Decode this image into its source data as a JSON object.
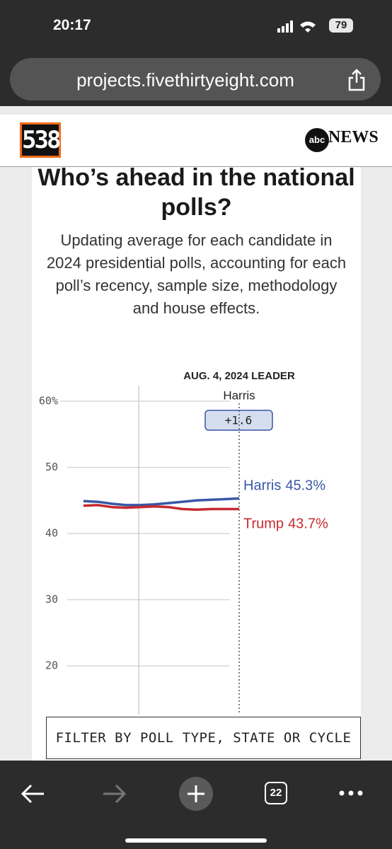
{
  "status_bar": {
    "time": "20:17",
    "battery": "79"
  },
  "browser": {
    "url": "projects.fivethirtyeight.com",
    "tab_count": "22"
  },
  "header": {
    "logo": "538",
    "partner_logo": "abc",
    "partner_name": "NEWS"
  },
  "chart_data": {
    "type": "line",
    "title": "Who’s ahead in the national polls?",
    "subtitle": "Updating average for each candidate in 2024 presidential polls, accounting for each poll’s recency, sample size, methodology and house effects.",
    "annotation": "AUG. 4, 2024 LEADER",
    "leader": "Harris",
    "leader_margin": {
      "value": 1.6,
      "label": "+1.6"
    },
    "categories": [
      null,
      null,
      null,
      null,
      null,
      null,
      null,
      null,
      null,
      null,
      null,
      null
    ],
    "series": [
      {
        "name": "Harris",
        "color": "#3857a6",
        "values": [
          44.9,
          44.8,
          44.5,
          44.3,
          44.3,
          44.4,
          44.6,
          44.8,
          45.0,
          45.1,
          45.2,
          45.3
        ],
        "value_labels": [
          null,
          null,
          null,
          null,
          null,
          null,
          null,
          null,
          null,
          null,
          null,
          "45.3%"
        ]
      },
      {
        "name": "Trump",
        "color": "#c62a2f",
        "values": [
          44.2,
          44.3,
          44.0,
          43.9,
          44.0,
          44.1,
          44.0,
          43.7,
          43.6,
          43.7,
          43.7,
          43.7
        ],
        "value_labels": [
          null,
          null,
          null,
          null,
          null,
          null,
          null,
          null,
          null,
          null,
          null,
          "43.7%"
        ]
      }
    ],
    "ylim": [
      15,
      60
    ],
    "yticks": [
      {
        "value": 60,
        "label": "60%"
      },
      50,
      40,
      30,
      20
    ],
    "grid": true
  },
  "filter_button": "FILTER BY POLL TYPE, STATE OR CYCLE"
}
